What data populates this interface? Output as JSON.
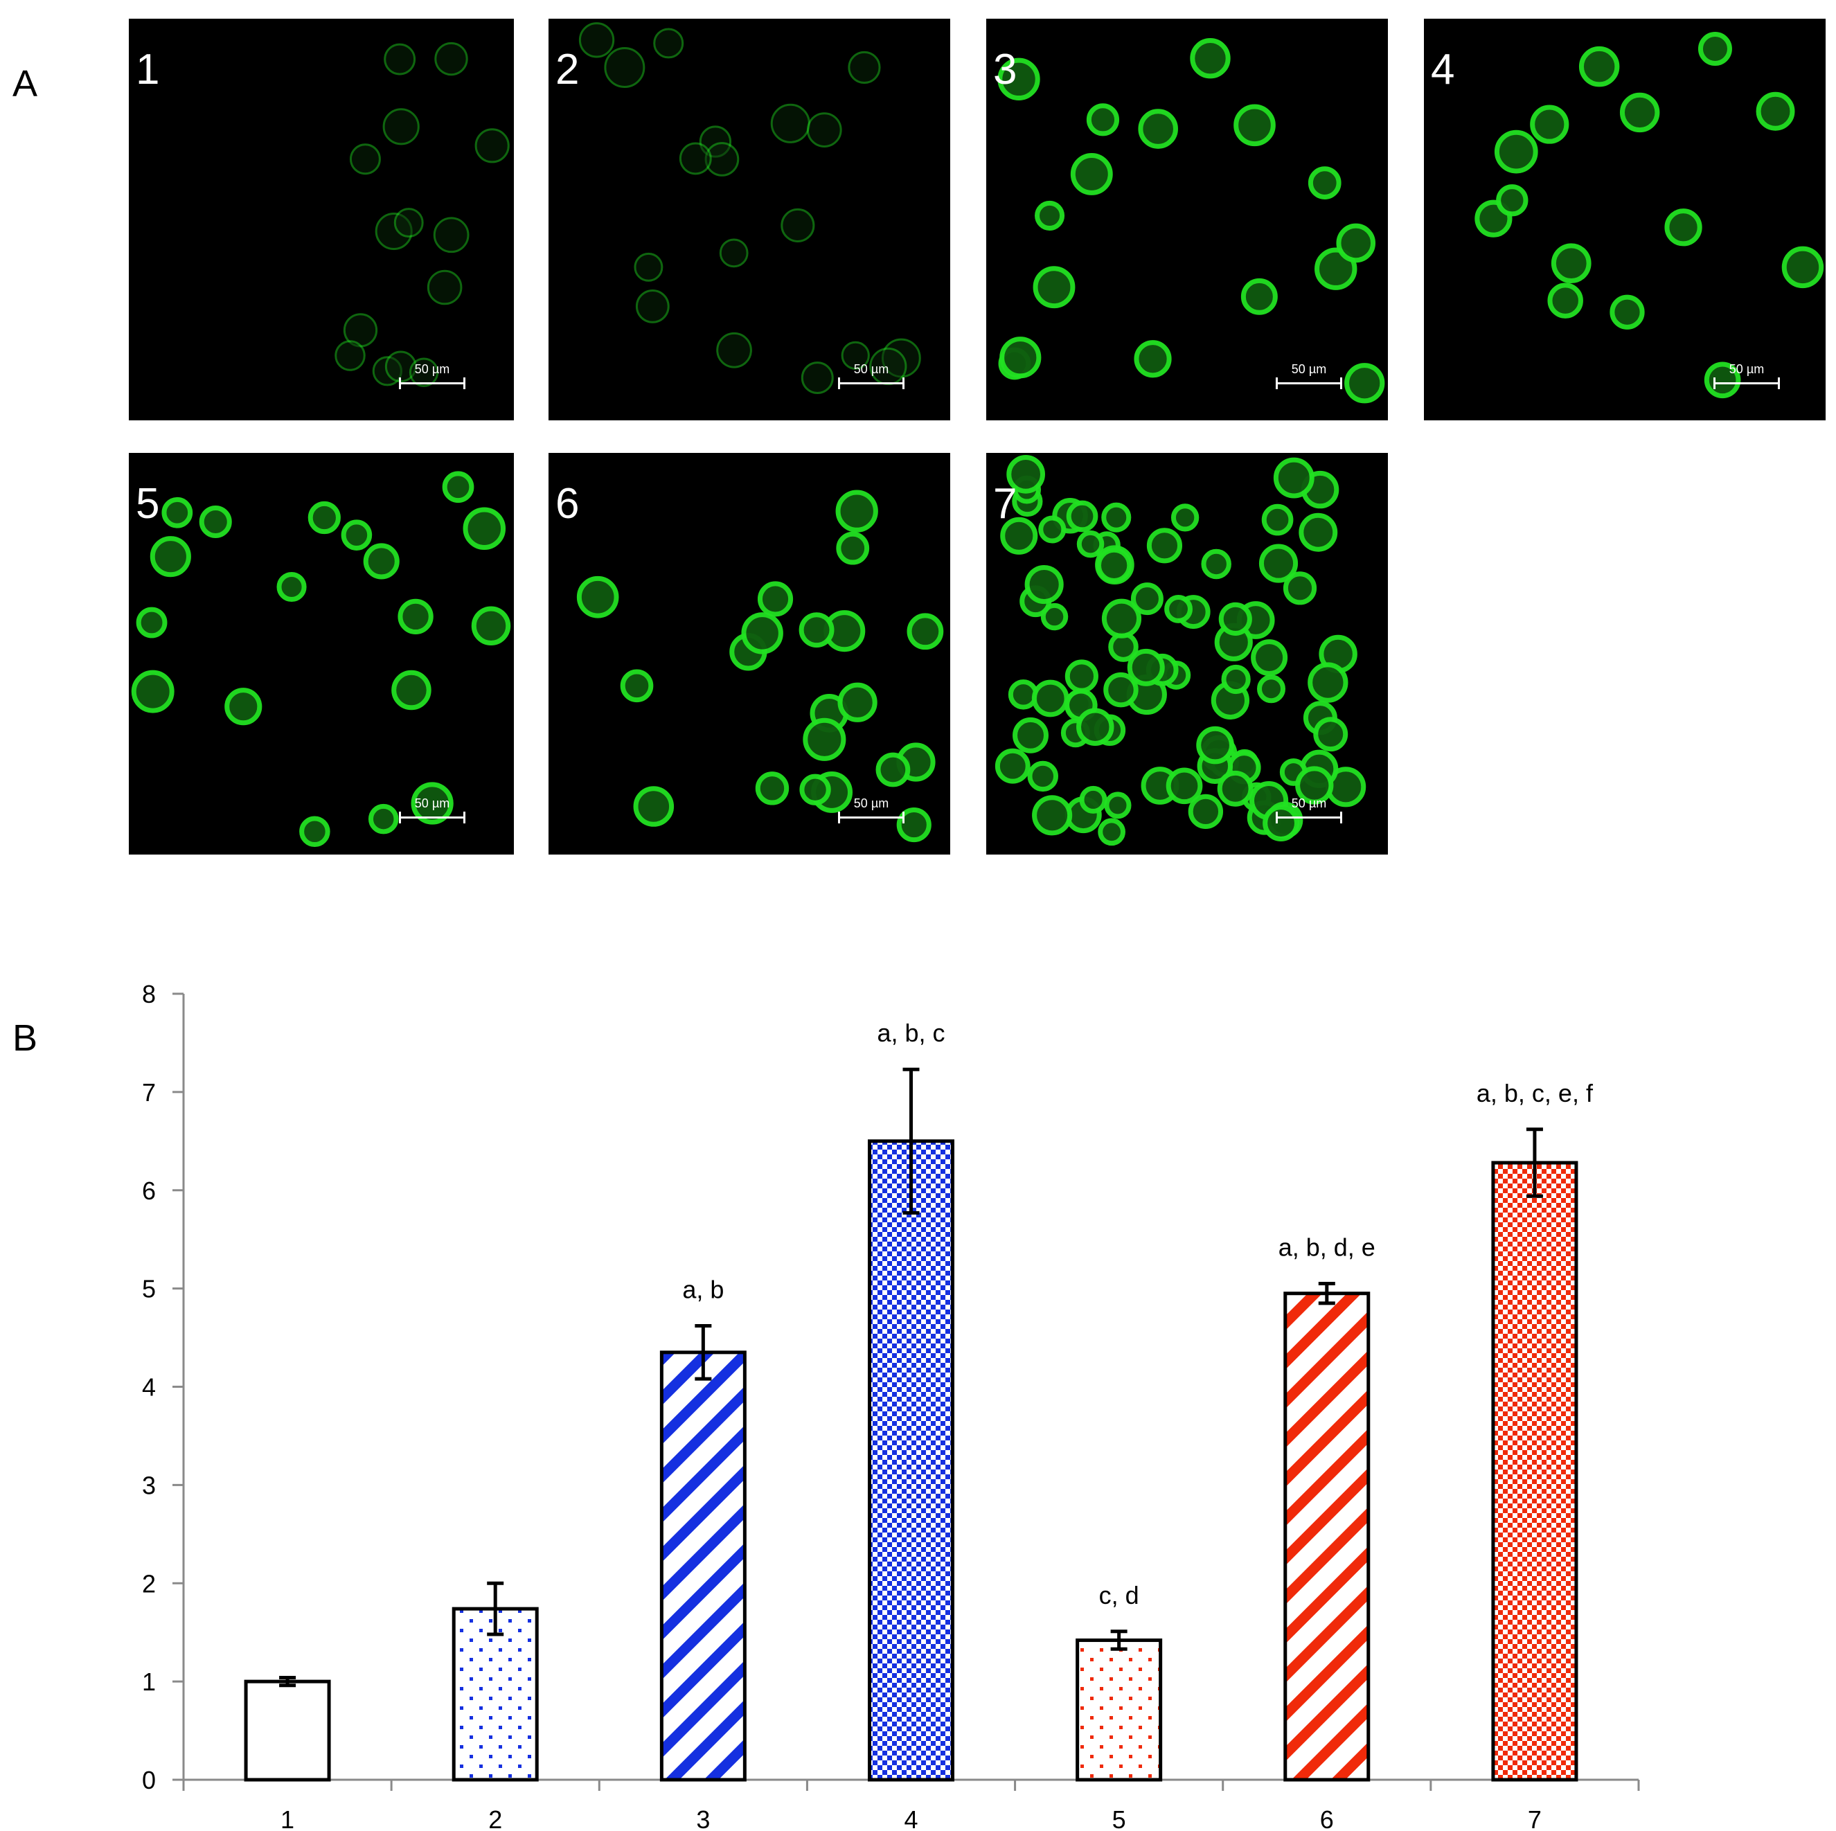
{
  "panel_a": {
    "letter": "A",
    "scale_label": "50 µm",
    "panels": [
      {
        "label": "1"
      },
      {
        "label": "2"
      },
      {
        "label": "3"
      },
      {
        "label": "4"
      },
      {
        "label": "5"
      },
      {
        "label": "6"
      },
      {
        "label": "7"
      }
    ]
  },
  "panel_b": {
    "letter": "B"
  },
  "colors": {
    "blue": "#1530e0",
    "red": "#f02a0a",
    "green_cell": "#22e222",
    "black": "#000000"
  },
  "chart_data": {
    "type": "bar",
    "title": "",
    "xlabel": "",
    "ylabel": "",
    "ylim": [
      0,
      8
    ],
    "yticks": [
      0,
      1,
      2,
      3,
      4,
      5,
      6,
      7,
      8
    ],
    "grid": false,
    "legend": "none",
    "categories": [
      "1",
      "2",
      "3",
      "4",
      "5",
      "6",
      "7"
    ],
    "values": [
      1.0,
      1.74,
      4.35,
      6.5,
      1.42,
      4.95,
      6.28
    ],
    "errors": [
      0.04,
      0.26,
      0.27,
      0.73,
      0.09,
      0.1,
      0.34
    ],
    "patterns": [
      "solid-white",
      "blue-dots",
      "blue-diagonal-stripes",
      "blue-checker",
      "red-dots",
      "red-diagonal-stripes",
      "red-checker"
    ],
    "annotations": [
      "",
      "",
      "a, b",
      "a, b, c",
      "c, d",
      "a, b, d, e",
      "a, b, c, e, f"
    ]
  }
}
